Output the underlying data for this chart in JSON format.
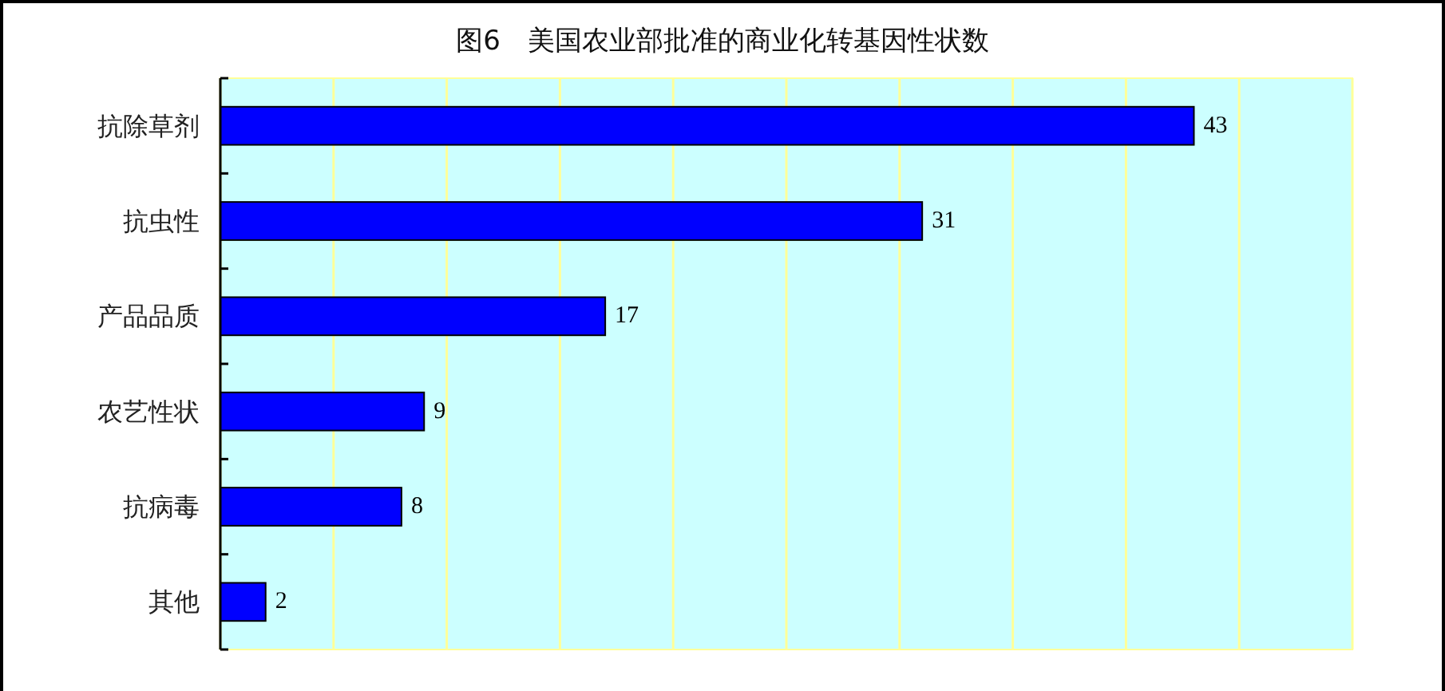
{
  "chart_data": {
    "type": "bar",
    "title": "图6　美国农业部批准的商业化转基因性状数",
    "orientation": "horizontal",
    "categories": [
      "抗除草剂",
      "抗虫性",
      "产品品质",
      "农艺性状",
      "抗病毒",
      "其他"
    ],
    "values": [
      43,
      31,
      17,
      9,
      8,
      2
    ],
    "color": "#0000ff",
    "xlim": [
      0,
      50
    ],
    "xticks": [
      {
        "value": 0,
        "label": null
      },
      {
        "value": 5,
        "label": null
      },
      {
        "value": 10,
        "label": null
      },
      {
        "value": 15,
        "label": null
      },
      {
        "value": 20,
        "label": null
      },
      {
        "value": 25,
        "label": null
      },
      {
        "value": 30,
        "label": null
      },
      {
        "value": 35,
        "label": null
      },
      {
        "value": 40,
        "label": null
      },
      {
        "value": 45,
        "label": null
      },
      {
        "value": 50,
        "label": null
      }
    ],
    "grid": "x",
    "tick_labels": "y",
    "data_labels": true
  }
}
